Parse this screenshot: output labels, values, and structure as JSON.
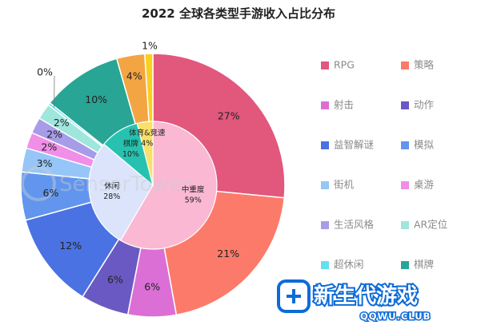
{
  "chart_data": {
    "type": "pie",
    "title": "2022 全球各类型手游收入占比分布",
    "outer_ring": [
      {
        "name": "RPG",
        "value": 27,
        "label": "27%",
        "color": "#e2577c"
      },
      {
        "name": "策略",
        "value": 21,
        "label": "21%",
        "color": "#fc7a6a"
      },
      {
        "name": "射击",
        "value": 6,
        "label": "6%",
        "color": "#db6fd6"
      },
      {
        "name": "动作",
        "value": 6,
        "label": "6%",
        "color": "#6a59c2"
      },
      {
        "name": "益智解谜",
        "value": 12,
        "label": "12%",
        "color": "#4a72e3"
      },
      {
        "name": "模拟",
        "value": 6,
        "label": "6%",
        "color": "#6295ee"
      },
      {
        "name": "街机",
        "value": 3,
        "label": "3%",
        "color": "#95c6f7"
      },
      {
        "name": "桌游",
        "value": 2,
        "label": "2%",
        "color": "#f08ee8"
      },
      {
        "name": "生活风格",
        "value": 2,
        "label": "2%",
        "color": "#a79ce8"
      },
      {
        "name": "AR定位",
        "value": 2,
        "label": "2%",
        "color": "#9fe6dc"
      },
      {
        "name": "超休闲",
        "value": 0.3,
        "label": "0%",
        "color": "#63dff0"
      },
      {
        "name": "棋牌",
        "value": 10,
        "label": "10%",
        "color": "#28a594"
      },
      {
        "name": "体育",
        "value": 3.5,
        "label": "4%",
        "color": "#f3a543"
      },
      {
        "name": "竞速",
        "value": 1,
        "label": "1%",
        "color": "#f9cf20"
      }
    ],
    "inner_ring": [
      {
        "name": "中重度",
        "value": 59,
        "label": "59%",
        "color": "#fbb8d3"
      },
      {
        "name": "休闲",
        "value": 28,
        "label": "28%",
        "color": "#dbe4fb"
      },
      {
        "name": "棋牌",
        "value": 10,
        "label": "10%",
        "color": "#27c2af"
      },
      {
        "name": "体育&竞速",
        "value": 4,
        "label": "4%",
        "color": "#f9e06a"
      }
    ],
    "legend": [
      {
        "name": "RPG",
        "color": "#e2577c"
      },
      {
        "name": "策略",
        "color": "#fc7a6a"
      },
      {
        "name": "射击",
        "color": "#db6fd6"
      },
      {
        "name": "动作",
        "color": "#6a59c2"
      },
      {
        "name": "益智解谜",
        "color": "#4a72e3"
      },
      {
        "name": "模拟",
        "color": "#6295ee"
      },
      {
        "name": "街机",
        "color": "#95c6f7"
      },
      {
        "name": "桌游",
        "color": "#f08ee8"
      },
      {
        "name": "生活风格",
        "color": "#a79ce8"
      },
      {
        "name": "AR定位",
        "color": "#9fe6dc"
      },
      {
        "name": "超休闲",
        "color": "#63dff0"
      },
      {
        "name": "棋牌",
        "color": "#28a594"
      }
    ],
    "legend_position": "right"
  },
  "watermark": "SensorTower",
  "logo": {
    "name": "新生代游戏",
    "sub": "QQWU.CLUB",
    "color": "#0d6bd8"
  }
}
